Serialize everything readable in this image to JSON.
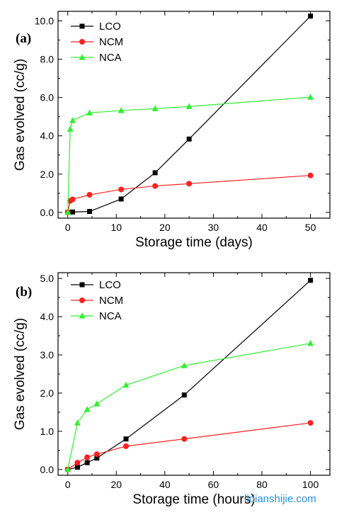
{
  "watermark": "lidianshijie.com",
  "colors": {
    "LCO": "#000000",
    "NCM": "#ff2020",
    "NCA": "#33ee33"
  },
  "chart_data": [
    {
      "panel": "(a)",
      "type": "line",
      "xlabel": "Storage time (days)",
      "ylabel": "Gas evolved (cc/g)",
      "xlim": [
        -2,
        54
      ],
      "ylim": [
        -0.3,
        10.5
      ],
      "xticks": [
        0,
        10,
        20,
        30,
        40,
        50
      ],
      "yticks": [
        0,
        2,
        4,
        6,
        8,
        10
      ],
      "xtick_labels": [
        "0",
        "10",
        "20",
        "30",
        "40",
        "50"
      ],
      "ytick_labels": [
        "0.0",
        "2.0",
        "4.0",
        "6.0",
        "8.0",
        "10.0"
      ],
      "legend_position": "top-left",
      "series": [
        {
          "name": "LCO",
          "marker": "square",
          "x": [
            0,
            1,
            4.5,
            11,
            18,
            25,
            50
          ],
          "y": [
            0,
            0.02,
            0.05,
            0.7,
            2.07,
            3.83,
            10.25
          ]
        },
        {
          "name": "NCM",
          "marker": "circle",
          "x": [
            0,
            0.5,
            1,
            4.5,
            11,
            18,
            25,
            50
          ],
          "y": [
            0,
            0.6,
            0.68,
            0.92,
            1.2,
            1.38,
            1.5,
            1.93
          ]
        },
        {
          "name": "NCA",
          "marker": "triangle",
          "x": [
            0,
            0.5,
            1,
            4.5,
            11,
            18,
            25,
            50
          ],
          "y": [
            0,
            4.35,
            4.8,
            5.2,
            5.32,
            5.42,
            5.53,
            6.02
          ]
        }
      ]
    },
    {
      "panel": "(b)",
      "type": "line",
      "xlabel": "Storage time (hours)",
      "ylabel": "Gas evolved (cc/g)",
      "xlim": [
        -4,
        108
      ],
      "ylim": [
        -0.15,
        5.15
      ],
      "xticks": [
        0,
        20,
        40,
        60,
        80,
        100
      ],
      "yticks": [
        0,
        1,
        2,
        3,
        4,
        5
      ],
      "xtick_labels": [
        "0",
        "20",
        "40",
        "60",
        "80",
        "100"
      ],
      "ytick_labels": [
        "0.0",
        "1.0",
        "2.0",
        "3.0",
        "4.0",
        "5.0"
      ],
      "legend_position": "top-left",
      "series": [
        {
          "name": "LCO",
          "marker": "square",
          "x": [
            0,
            4,
            8,
            12,
            24,
            48,
            100
          ],
          "y": [
            0,
            0.06,
            0.18,
            0.3,
            0.8,
            1.95,
            4.95
          ]
        },
        {
          "name": "NCM",
          "marker": "circle",
          "x": [
            0,
            4,
            8,
            12,
            24,
            48,
            100
          ],
          "y": [
            0,
            0.18,
            0.32,
            0.4,
            0.61,
            0.8,
            1.22
          ]
        },
        {
          "name": "NCA",
          "marker": "triangle",
          "x": [
            0,
            4,
            8,
            12,
            24,
            48,
            100
          ],
          "y": [
            0,
            1.22,
            1.57,
            1.72,
            2.21,
            2.72,
            3.3
          ]
        }
      ]
    }
  ]
}
